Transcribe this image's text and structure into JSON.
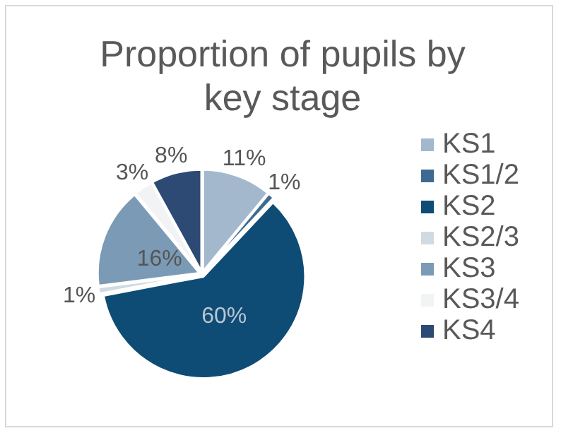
{
  "chart_data": {
    "type": "pie",
    "title": "Proportion of pupils by key stage",
    "categories": [
      "KS1",
      "KS1/2",
      "KS2",
      "KS2/3",
      "KS3",
      "KS3/4",
      "KS4"
    ],
    "values": [
      11,
      1,
      60,
      1,
      16,
      3,
      8
    ],
    "colors": [
      "#a3b8cc",
      "#3e6a8f",
      "#0f4c75",
      "#d0dae3",
      "#7b9ab5",
      "#f1f3f5",
      "#2d4a74"
    ],
    "value_labels": [
      "11%",
      "1%",
      "60%",
      "1%",
      "16%",
      "3%",
      "8%"
    ],
    "legend": "right"
  }
}
